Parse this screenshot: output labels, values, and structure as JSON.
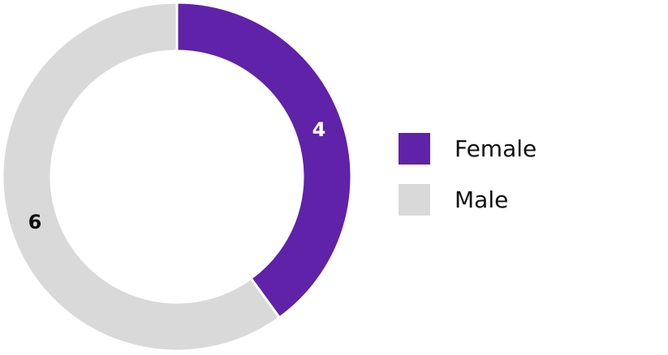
{
  "chart_data": {
    "type": "donut",
    "categories": [
      "Female",
      "Male"
    ],
    "values": [
      4,
      6
    ],
    "colors": [
      "#5f22a8",
      "#d9d9d9"
    ],
    "legend": "right"
  }
}
